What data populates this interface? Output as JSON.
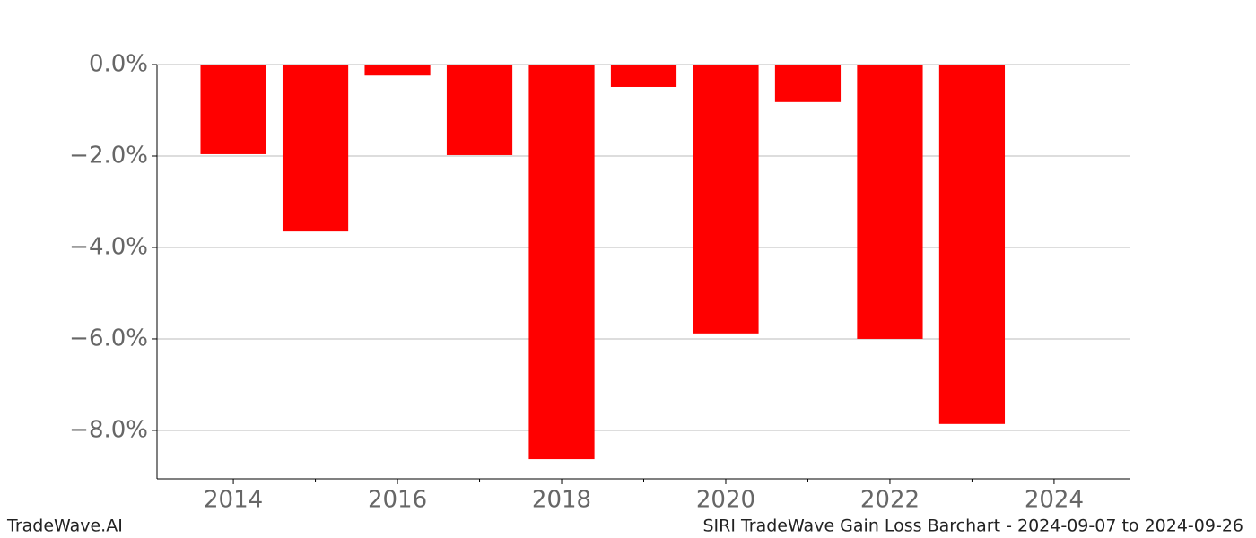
{
  "chart_data": {
    "type": "bar",
    "x": [
      2014,
      2015,
      2016,
      2017,
      2018,
      2019,
      2020,
      2021,
      2022,
      2023
    ],
    "values": [
      -1.96,
      -3.65,
      -0.24,
      -1.98,
      -8.63,
      -0.49,
      -5.88,
      -0.82,
      -6.0,
      -7.86
    ],
    "color": "#ff0000",
    "xlim": [
      2013.07,
      2024.93
    ],
    "xticks": [
      2014,
      2016,
      2018,
      2020,
      2022,
      2024
    ],
    "xminorticks": [
      2015,
      2017,
      2019,
      2021,
      2023
    ],
    "ylim": [
      -9.06,
      0
    ],
    "yticks": [
      {
        "value": 0,
        "label": "0.0%"
      },
      {
        "value": -2,
        "label": "−2.0%"
      },
      {
        "value": -4,
        "label": "−4.0%"
      },
      {
        "value": -6,
        "label": "−6.0%"
      },
      {
        "value": -8,
        "label": "−8.0%"
      }
    ],
    "grid": true
  },
  "footer": {
    "left": "TradeWave.AI",
    "right": "SIRI TradeWave Gain Loss Barchart - 2024-09-07 to 2024-09-26"
  }
}
